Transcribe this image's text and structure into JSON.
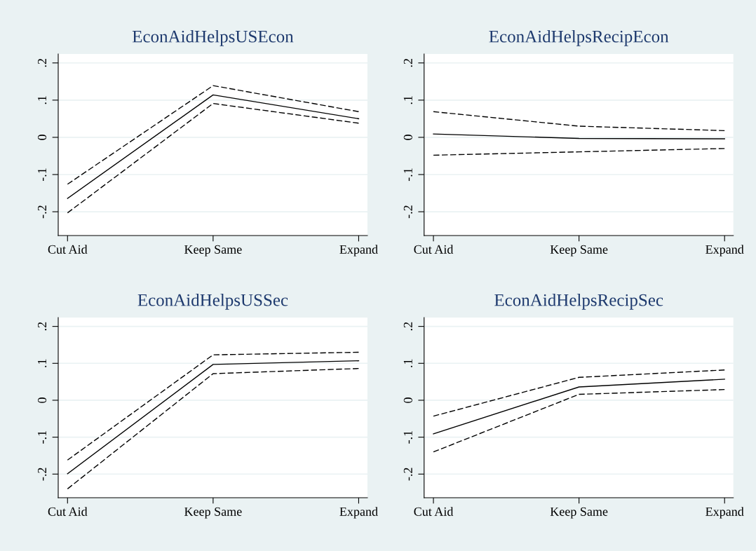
{
  "chart_data": [
    {
      "type": "line",
      "title": "EconAidHelpsUSEcon",
      "categories": [
        "Cut Aid",
        "Keep Same",
        "Expand"
      ],
      "ylim": [
        -0.264,
        0.224
      ],
      "yticks": [
        {
          "value": -0.2,
          "label": "-.2"
        },
        {
          "value": -0.1,
          "label": "-.1"
        },
        0,
        {
          "value": 0.1,
          "label": ".1"
        },
        {
          "value": 0.2,
          "label": ".2"
        }
      ],
      "grid": "y",
      "series": [
        {
          "color": "#000000",
          "line_style": "solid",
          "values": [
            -0.164,
            0.114,
            0.05
          ]
        },
        {
          "color": "#000000",
          "line_style": "dashed",
          "values": [
            -0.126,
            0.139,
            0.069
          ]
        },
        {
          "color": "#000000",
          "line_style": "dashed",
          "values": [
            -0.203,
            0.091,
            0.038
          ]
        }
      ]
    },
    {
      "type": "line",
      "title": "EconAidHelpsRecipEcon",
      "categories": [
        "Cut Aid",
        "Keep Same",
        "Expand"
      ],
      "ylim": [
        -0.264,
        0.224
      ],
      "yticks": [
        {
          "value": -0.2,
          "label": "-.2"
        },
        {
          "value": -0.1,
          "label": "-.1"
        },
        0,
        {
          "value": 0.1,
          "label": ".1"
        },
        {
          "value": 0.2,
          "label": ".2"
        }
      ],
      "grid": "y",
      "series": [
        {
          "color": "#000000",
          "line_style": "solid",
          "values": [
            0.009,
            -0.003,
            -0.004
          ]
        },
        {
          "color": "#000000",
          "line_style": "dashed",
          "values": [
            0.069,
            0.03,
            0.018
          ]
        },
        {
          "color": "#000000",
          "line_style": "dashed",
          "values": [
            -0.048,
            -0.039,
            -0.03
          ]
        }
      ]
    },
    {
      "type": "line",
      "title": "EconAidHelpsUSSec",
      "categories": [
        "Cut Aid",
        "Keep Same",
        "Expand"
      ],
      "ylim": [
        -0.264,
        0.224
      ],
      "yticks": [
        {
          "value": -0.2,
          "label": "-.2"
        },
        {
          "value": -0.1,
          "label": "-.1"
        },
        0,
        {
          "value": 0.1,
          "label": ".1"
        },
        {
          "value": 0.2,
          "label": ".2"
        }
      ],
      "grid": "y",
      "series": [
        {
          "color": "#000000",
          "line_style": "solid",
          "values": [
            -0.199,
            0.097,
            0.107
          ]
        },
        {
          "color": "#000000",
          "line_style": "dashed",
          "values": [
            -0.162,
            0.123,
            0.13
          ]
        },
        {
          "color": "#000000",
          "line_style": "dashed",
          "values": [
            -0.24,
            0.072,
            0.086
          ]
        }
      ]
    },
    {
      "type": "line",
      "title": "EconAidHelpsRecipSec",
      "categories": [
        "Cut Aid",
        "Keep Same",
        "Expand"
      ],
      "ylim": [
        -0.264,
        0.224
      ],
      "yticks": [
        {
          "value": -0.2,
          "label": "-.2"
        },
        {
          "value": -0.1,
          "label": "-.1"
        },
        0,
        {
          "value": 0.1,
          "label": ".1"
        },
        {
          "value": 0.2,
          "label": ".2"
        }
      ],
      "grid": "y",
      "series": [
        {
          "color": "#000000",
          "line_style": "solid",
          "values": [
            -0.091,
            0.036,
            0.057
          ]
        },
        {
          "color": "#000000",
          "line_style": "dashed",
          "values": [
            -0.043,
            0.062,
            0.082
          ]
        },
        {
          "color": "#000000",
          "line_style": "dashed",
          "values": [
            -0.14,
            0.016,
            0.029
          ]
        }
      ]
    }
  ]
}
